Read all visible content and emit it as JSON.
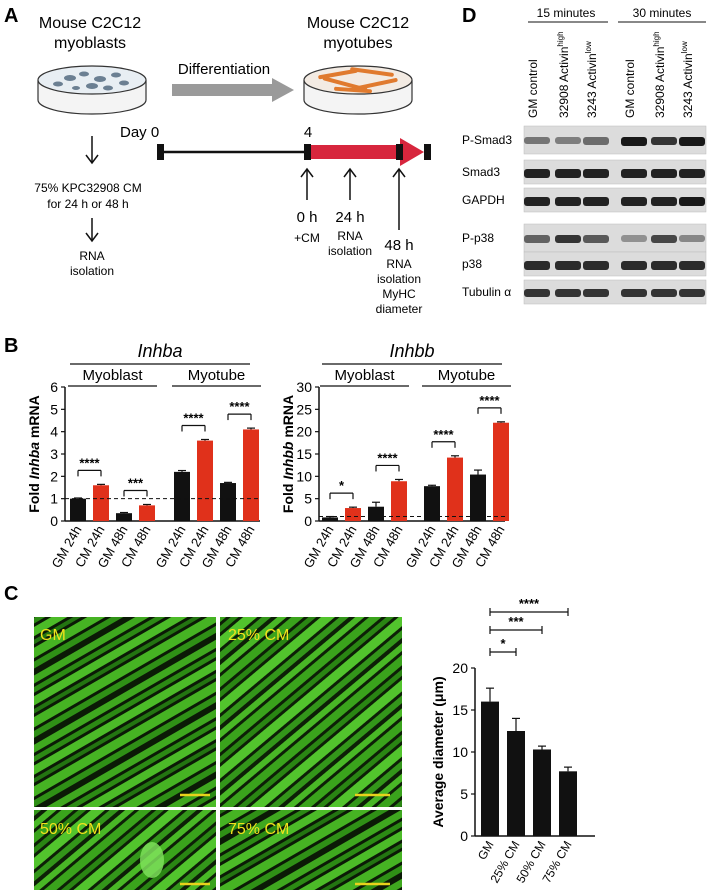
{
  "panel_letters": {
    "A": "A",
    "B": "B",
    "C": "C",
    "D": "D"
  },
  "panel_a": {
    "myoblast_title": [
      "Mouse C2C12",
      "myoblasts"
    ],
    "myotube_title": [
      "Mouse C2C12",
      "myotubes"
    ],
    "differentiation_label": "Differentiation",
    "day0_label": "Day 0",
    "day4_label": "4",
    "treatment_lines": [
      "75% KPC32908 CM",
      "for 24 h or 48 h"
    ],
    "rna_isolation_left": [
      "RNA",
      "isolation"
    ],
    "t0": [
      "0 h",
      "+CM"
    ],
    "t24": [
      "24 h",
      "RNA",
      "isolation"
    ],
    "t48": [
      "48 h",
      "RNA",
      "isolation",
      "MyHC",
      "diameter"
    ],
    "colors": {
      "arrow_gray": "#9a9a9a",
      "red": "#d7263d",
      "myotube_orange": "#e07a2e"
    }
  },
  "panel_d": {
    "group_labels": [
      "15 minutes",
      "30 minutes"
    ],
    "lane_labels": [
      {
        "main": "GM control",
        "sup": ""
      },
      {
        "main": "32908 Activin",
        "sup": "high"
      },
      {
        "main": "3243 Activin",
        "sup": "low"
      },
      {
        "main": "GM control",
        "sup": ""
      },
      {
        "main": "32908 Activin",
        "sup": "high"
      },
      {
        "main": "3243 Activin",
        "sup": "low"
      }
    ],
    "blots": [
      "P-Smad3",
      "Smad3",
      "GAPDH",
      "P-p38",
      "p38",
      "Tubulin α"
    ]
  },
  "panel_b": {
    "significance_inhba": [
      "****",
      "***",
      "****",
      "****"
    ],
    "significance_inhbb": [
      "*",
      "****",
      "****",
      "****"
    ]
  },
  "panel_c": {
    "micrograph_labels": [
      "GM",
      "25% CM",
      "50% CM",
      "75% CM"
    ]
  },
  "chart_data": [
    {
      "type": "bar",
      "title": "Inhba",
      "ylabel_parts": [
        "Fold ",
        "Inhba",
        " mRNA"
      ],
      "group_labels": [
        "Myoblast",
        "Myotube"
      ],
      "categories": [
        "GM 24h",
        "CM 24h",
        "GM 48h",
        "CM 48h",
        "GM 24h",
        "CM 24h",
        "GM 48h",
        "CM 48h"
      ],
      "values": [
        1.0,
        1.6,
        0.35,
        0.7,
        2.2,
        3.6,
        1.7,
        4.1
      ],
      "errors": [
        0.03,
        0.04,
        0.03,
        0.04,
        0.06,
        0.05,
        0.03,
        0.06
      ],
      "bar_colors": [
        "#111111",
        "#e0311b",
        "#111111",
        "#e0311b",
        "#111111",
        "#e0311b",
        "#111111",
        "#e0311b"
      ],
      "ylim": [
        0,
        6
      ],
      "yticks": [
        0,
        1,
        2,
        3,
        4,
        5,
        6
      ],
      "reference_line": 1,
      "grid": false
    },
    {
      "type": "bar",
      "title": "Inhbb",
      "ylabel_parts": [
        "Fold ",
        "Inhbb",
        " mRNA"
      ],
      "group_labels": [
        "Myoblast",
        "Myotube"
      ],
      "categories": [
        "GM 24h",
        "CM 24h",
        "GM 48h",
        "CM 48h",
        "GM 24h",
        "CM 24h",
        "GM 48h",
        "CM 48h"
      ],
      "values": [
        0.8,
        2.9,
        3.2,
        8.9,
        7.8,
        14.2,
        10.4,
        22.0
      ],
      "errors": [
        0.2,
        0.2,
        1.0,
        0.4,
        0.2,
        0.4,
        1.0,
        0.2
      ],
      "bar_colors": [
        "#111111",
        "#e0311b",
        "#111111",
        "#e0311b",
        "#111111",
        "#e0311b",
        "#111111",
        "#e0311b"
      ],
      "ylim": [
        0,
        30
      ],
      "yticks": [
        0,
        5,
        10,
        15,
        20,
        25,
        30
      ],
      "reference_line": 1,
      "grid": false
    },
    {
      "type": "bar",
      "title": "",
      "ylabel": "Average diameter (μm)",
      "categories": [
        "GM",
        "25% CM",
        "50% CM",
        "75% CM"
      ],
      "values": [
        16.0,
        12.5,
        10.3,
        7.7
      ],
      "errors": [
        1.6,
        1.5,
        0.4,
        0.5
      ],
      "bar_colors": [
        "#111111",
        "#111111",
        "#111111",
        "#111111"
      ],
      "significance": [
        {
          "from": 0,
          "to": 1,
          "label": "*"
        },
        {
          "from": 0,
          "to": 2,
          "label": "***"
        },
        {
          "from": 0,
          "to": 3,
          "label": "****"
        }
      ],
      "ylim": [
        0,
        20
      ],
      "yticks": [
        0,
        5,
        10,
        15,
        20
      ],
      "grid": false
    }
  ]
}
